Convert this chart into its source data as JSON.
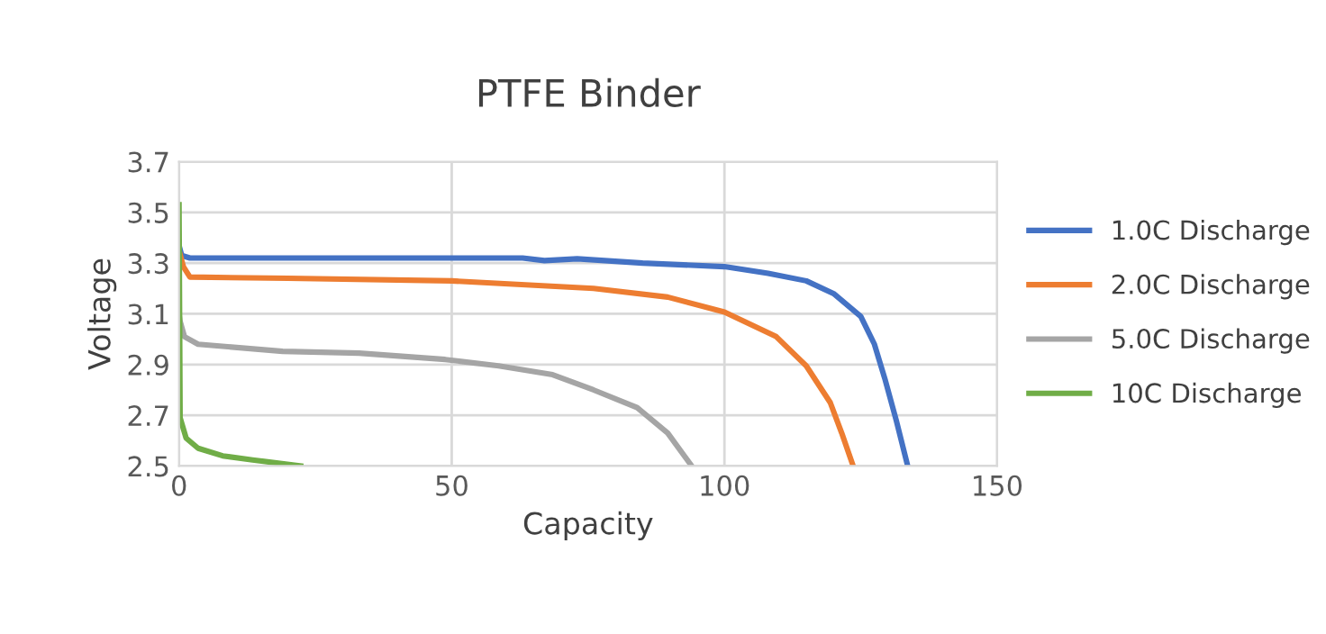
{
  "chart_data": {
    "type": "line",
    "title": "PTFE Binder",
    "xlabel": "Capacity",
    "ylabel": "Voltage",
    "xlim": [
      0,
      150
    ],
    "ylim": [
      2.5,
      3.7
    ],
    "xticks": [
      0,
      50,
      100,
      150
    ],
    "yticks": [
      2.5,
      2.7,
      2.9,
      3.1,
      3.3,
      3.5,
      3.7
    ],
    "grid": true,
    "legend": "right",
    "marker": "none",
    "line_style": "solid",
    "series": [
      {
        "name": "1.0C Discharge",
        "color": "#4472c4",
        "x": [
          0,
          0.5,
          2,
          20,
          40,
          63,
          67,
          73,
          85,
          100,
          108,
          115,
          120,
          125,
          127.5,
          129.4,
          131.5,
          133.6
        ],
        "values": [
          3.37,
          3.33,
          3.32,
          3.32,
          3.32,
          3.32,
          3.31,
          3.317,
          3.3,
          3.286,
          3.26,
          3.23,
          3.18,
          3.09,
          2.98,
          2.845,
          2.68,
          2.5
        ]
      },
      {
        "name": "2.0C Discharge",
        "color": "#ed7d31",
        "x": [
          0,
          0.8,
          2,
          20,
          50,
          76,
          89.6,
          100,
          109.5,
          115,
          119.4,
          121.5,
          123.6
        ],
        "values": [
          3.35,
          3.286,
          3.245,
          3.24,
          3.23,
          3.2,
          3.166,
          3.107,
          3.01,
          2.895,
          2.75,
          2.63,
          2.5
        ]
      },
      {
        "name": "5.0C Discharge",
        "color": "#a5a5a5",
        "x": [
          0,
          0.2,
          1,
          3.5,
          19,
          33,
          48.8,
          58.6,
          68.5,
          76,
          84,
          89.6,
          94
        ],
        "values": [
          3.1,
          3.07,
          3.01,
          2.98,
          2.952,
          2.945,
          2.92,
          2.895,
          2.86,
          2.8,
          2.73,
          2.63,
          2.5
        ]
      },
      {
        "name": "10C Discharge",
        "color": "#70ad47",
        "x": [
          0,
          0.2,
          1.3,
          3.5,
          8,
          13.5,
          22.3
        ],
        "values": [
          3.53,
          2.69,
          2.61,
          2.57,
          2.54,
          2.524,
          2.5
        ]
      }
    ]
  }
}
